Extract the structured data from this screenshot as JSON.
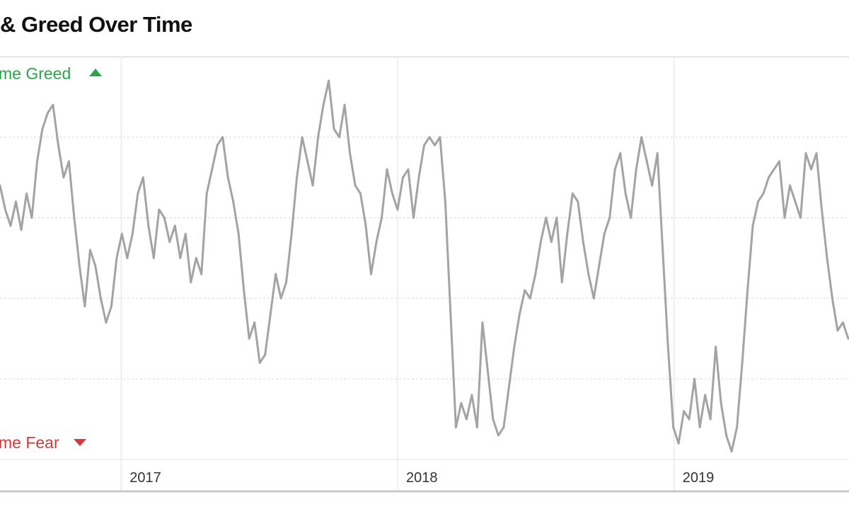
{
  "page": {
    "title": "& Greed Over Time"
  },
  "chart_data": {
    "type": "line",
    "x_type": "date",
    "y_range": [
      0,
      100
    ],
    "x_range": [
      "2016-07-25",
      "2019-08-20"
    ],
    "grid": true,
    "annotations": {
      "top_label": "me Greed",
      "bottom_label": "me Fear"
    },
    "x_tick_labels": [
      {
        "date": "2017-01-01",
        "label": "2017"
      },
      {
        "date": "2018-01-01",
        "label": "2018"
      },
      {
        "date": "2019-01-01",
        "label": "2019"
      }
    ],
    "y_gridlines": [
      20,
      40,
      60,
      80
    ],
    "colors": {
      "line": "#a3a3a3",
      "greed": "#2ba34a",
      "fear": "#d23a3a",
      "grid": "#d4d4d4"
    },
    "series": [
      {
        "points": [
          [
            "2016-07-25",
            68
          ],
          [
            "2016-08-01",
            62
          ],
          [
            "2016-08-08",
            58
          ],
          [
            "2016-08-15",
            64
          ],
          [
            "2016-08-22",
            57
          ],
          [
            "2016-08-29",
            66
          ],
          [
            "2016-09-05",
            60
          ],
          [
            "2016-09-12",
            74
          ],
          [
            "2016-09-19",
            82
          ],
          [
            "2016-09-26",
            86
          ],
          [
            "2016-10-03",
            88
          ],
          [
            "2016-10-10",
            78
          ],
          [
            "2016-10-17",
            70
          ],
          [
            "2016-10-24",
            74
          ],
          [
            "2016-10-31",
            60
          ],
          [
            "2016-11-07",
            48
          ],
          [
            "2016-11-14",
            38
          ],
          [
            "2016-11-21",
            52
          ],
          [
            "2016-11-28",
            48
          ],
          [
            "2016-12-05",
            40
          ],
          [
            "2016-12-12",
            34
          ],
          [
            "2016-12-19",
            38
          ],
          [
            "2016-12-26",
            50
          ],
          [
            "2017-01-02",
            56
          ],
          [
            "2017-01-09",
            50
          ],
          [
            "2017-01-16",
            56
          ],
          [
            "2017-01-23",
            66
          ],
          [
            "2017-01-30",
            70
          ],
          [
            "2017-02-06",
            58
          ],
          [
            "2017-02-13",
            50
          ],
          [
            "2017-02-20",
            62
          ],
          [
            "2017-02-27",
            60
          ],
          [
            "2017-03-06",
            54
          ],
          [
            "2017-03-13",
            58
          ],
          [
            "2017-03-20",
            50
          ],
          [
            "2017-03-27",
            56
          ],
          [
            "2017-04-03",
            44
          ],
          [
            "2017-04-10",
            50
          ],
          [
            "2017-04-17",
            46
          ],
          [
            "2017-04-24",
            66
          ],
          [
            "2017-05-01",
            72
          ],
          [
            "2017-05-08",
            78
          ],
          [
            "2017-05-15",
            80
          ],
          [
            "2017-05-22",
            70
          ],
          [
            "2017-05-29",
            64
          ],
          [
            "2017-06-05",
            56
          ],
          [
            "2017-06-12",
            42
          ],
          [
            "2017-06-19",
            30
          ],
          [
            "2017-06-26",
            34
          ],
          [
            "2017-07-03",
            24
          ],
          [
            "2017-07-10",
            26
          ],
          [
            "2017-07-17",
            36
          ],
          [
            "2017-07-24",
            46
          ],
          [
            "2017-07-31",
            40
          ],
          [
            "2017-08-07",
            44
          ],
          [
            "2017-08-14",
            56
          ],
          [
            "2017-08-21",
            70
          ],
          [
            "2017-08-28",
            80
          ],
          [
            "2017-09-04",
            74
          ],
          [
            "2017-09-11",
            68
          ],
          [
            "2017-09-18",
            80
          ],
          [
            "2017-09-25",
            88
          ],
          [
            "2017-10-02",
            94
          ],
          [
            "2017-10-09",
            82
          ],
          [
            "2017-10-16",
            80
          ],
          [
            "2017-10-23",
            88
          ],
          [
            "2017-10-30",
            76
          ],
          [
            "2017-11-06",
            68
          ],
          [
            "2017-11-13",
            66
          ],
          [
            "2017-11-20",
            58
          ],
          [
            "2017-11-27",
            46
          ],
          [
            "2017-12-04",
            54
          ],
          [
            "2017-12-11",
            60
          ],
          [
            "2017-12-18",
            72
          ],
          [
            "2017-12-25",
            66
          ],
          [
            "2018-01-01",
            62
          ],
          [
            "2018-01-08",
            70
          ],
          [
            "2018-01-15",
            72
          ],
          [
            "2018-01-22",
            60
          ],
          [
            "2018-01-29",
            70
          ],
          [
            "2018-02-05",
            78
          ],
          [
            "2018-02-12",
            80
          ],
          [
            "2018-02-19",
            78
          ],
          [
            "2018-02-26",
            80
          ],
          [
            "2018-03-05",
            64
          ],
          [
            "2018-03-12",
            36
          ],
          [
            "2018-03-19",
            8
          ],
          [
            "2018-03-26",
            14
          ],
          [
            "2018-04-02",
            10
          ],
          [
            "2018-04-09",
            16
          ],
          [
            "2018-04-16",
            8
          ],
          [
            "2018-04-23",
            34
          ],
          [
            "2018-04-30",
            22
          ],
          [
            "2018-05-07",
            10
          ],
          [
            "2018-05-14",
            6
          ],
          [
            "2018-05-21",
            8
          ],
          [
            "2018-05-28",
            18
          ],
          [
            "2018-06-04",
            28
          ],
          [
            "2018-06-11",
            36
          ],
          [
            "2018-06-18",
            42
          ],
          [
            "2018-06-25",
            40
          ],
          [
            "2018-07-02",
            46
          ],
          [
            "2018-07-09",
            54
          ],
          [
            "2018-07-16",
            60
          ],
          [
            "2018-07-23",
            54
          ],
          [
            "2018-07-30",
            60
          ],
          [
            "2018-08-06",
            44
          ],
          [
            "2018-08-13",
            56
          ],
          [
            "2018-08-20",
            66
          ],
          [
            "2018-08-27",
            64
          ],
          [
            "2018-09-03",
            54
          ],
          [
            "2018-09-10",
            46
          ],
          [
            "2018-09-17",
            40
          ],
          [
            "2018-09-24",
            48
          ],
          [
            "2018-10-01",
            56
          ],
          [
            "2018-10-08",
            60
          ],
          [
            "2018-10-15",
            72
          ],
          [
            "2018-10-22",
            76
          ],
          [
            "2018-10-29",
            66
          ],
          [
            "2018-11-05",
            60
          ],
          [
            "2018-11-12",
            72
          ],
          [
            "2018-11-19",
            80
          ],
          [
            "2018-11-26",
            74
          ],
          [
            "2018-12-03",
            68
          ],
          [
            "2018-12-10",
            76
          ],
          [
            "2018-12-17",
            52
          ],
          [
            "2018-12-24",
            28
          ],
          [
            "2018-12-31",
            8
          ],
          [
            "2019-01-07",
            4
          ],
          [
            "2019-01-14",
            12
          ],
          [
            "2019-01-21",
            10
          ],
          [
            "2019-01-28",
            20
          ],
          [
            "2019-02-04",
            8
          ],
          [
            "2019-02-11",
            16
          ],
          [
            "2019-02-18",
            10
          ],
          [
            "2019-02-25",
            28
          ],
          [
            "2019-03-04",
            14
          ],
          [
            "2019-03-11",
            6
          ],
          [
            "2019-03-18",
            2
          ],
          [
            "2019-03-25",
            8
          ],
          [
            "2019-04-01",
            24
          ],
          [
            "2019-04-08",
            42
          ],
          [
            "2019-04-15",
            58
          ],
          [
            "2019-04-22",
            64
          ],
          [
            "2019-04-29",
            66
          ],
          [
            "2019-05-06",
            70
          ],
          [
            "2019-05-13",
            72
          ],
          [
            "2019-05-20",
            74
          ],
          [
            "2019-05-27",
            60
          ],
          [
            "2019-06-03",
            68
          ],
          [
            "2019-06-10",
            64
          ],
          [
            "2019-06-17",
            60
          ],
          [
            "2019-06-24",
            76
          ],
          [
            "2019-07-01",
            72
          ],
          [
            "2019-07-08",
            76
          ],
          [
            "2019-07-15",
            62
          ],
          [
            "2019-07-22",
            50
          ],
          [
            "2019-07-29",
            40
          ],
          [
            "2019-08-05",
            32
          ],
          [
            "2019-08-12",
            34
          ],
          [
            "2019-08-19",
            30
          ]
        ]
      }
    ]
  }
}
